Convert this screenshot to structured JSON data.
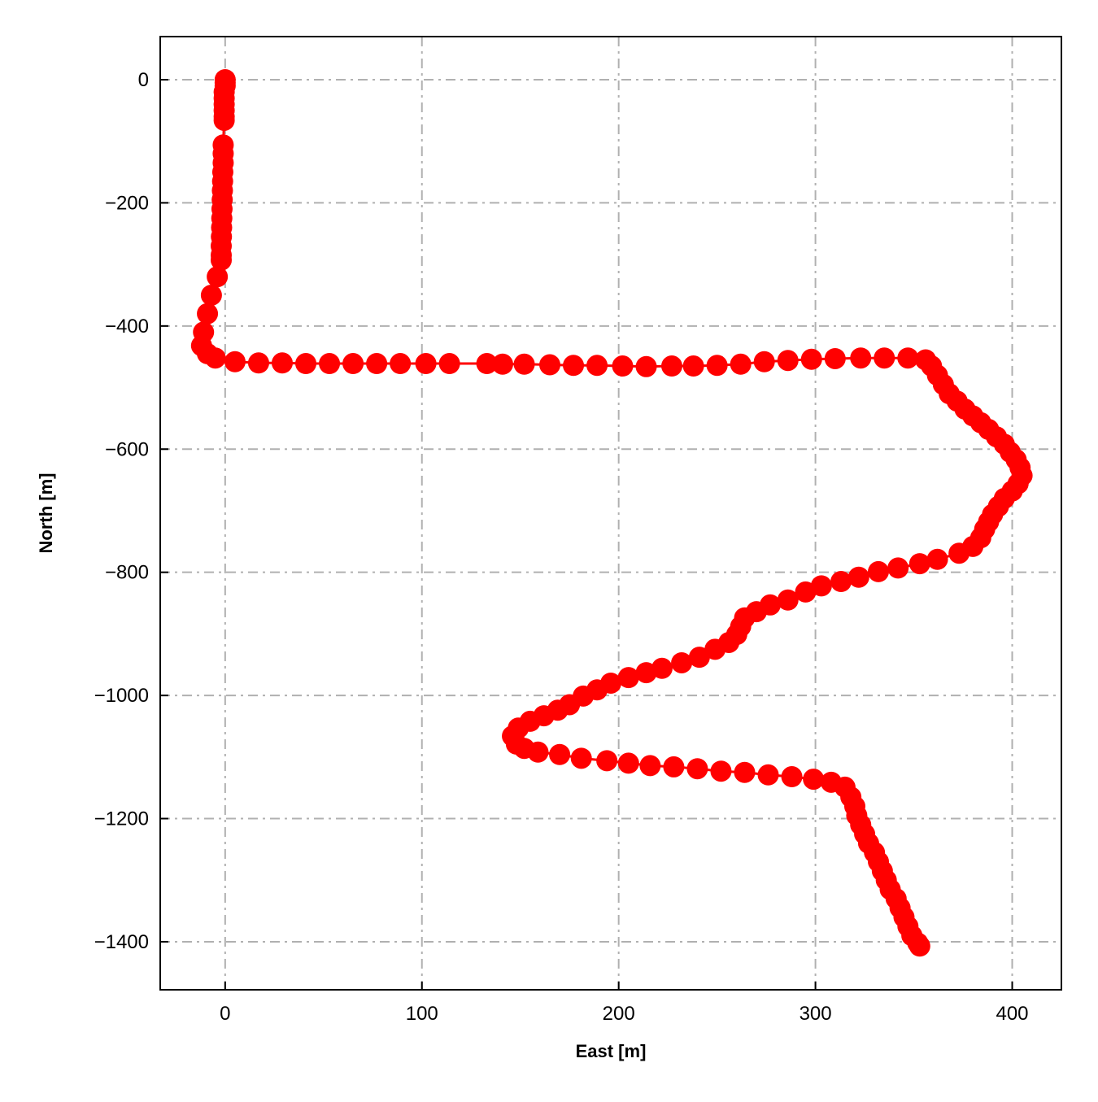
{
  "chart_data": {
    "type": "line",
    "title": "",
    "xlabel": "East [m]",
    "ylabel": "North [m]",
    "xlim": [
      -33,
      425
    ],
    "ylim": [
      -1478,
      70
    ],
    "xticks": [
      0,
      100,
      200,
      300,
      400
    ],
    "yticks": [
      0,
      -200,
      -400,
      -600,
      -800,
      -1000,
      -1200,
      -1400
    ],
    "xtick_labels": [
      "0",
      "100",
      "200",
      "300",
      "400"
    ],
    "ytick_labels": [
      "0",
      "−200",
      "−400",
      "−600",
      "−800",
      "−1000",
      "−1200",
      "−1400"
    ],
    "grid": true,
    "grid_style": "dash-dot",
    "color": "#ff0000",
    "marker": "circle",
    "series": [
      {
        "points": [
          [
            0,
            0
          ],
          [
            0,
            -5
          ],
          [
            0,
            -10
          ],
          [
            -0.5,
            -20
          ],
          [
            -0.5,
            -30
          ],
          [
            -0.5,
            -40
          ],
          [
            -0.5,
            -50
          ],
          [
            -0.5,
            -60
          ],
          [
            -0.5,
            -66
          ],
          [
            -1,
            -106
          ],
          [
            -1,
            -120
          ],
          [
            -1,
            -135
          ],
          [
            -1.2,
            -150
          ],
          [
            -1.3,
            -165
          ],
          [
            -1.4,
            -180
          ],
          [
            -1.5,
            -195
          ],
          [
            -1.6,
            -210
          ],
          [
            -1.7,
            -225
          ],
          [
            -1.8,
            -240
          ],
          [
            -1.9,
            -255
          ],
          [
            -2,
            -270
          ],
          [
            -2,
            -285
          ],
          [
            -2,
            -293
          ],
          [
            -4,
            -320
          ],
          [
            -7,
            -350
          ],
          [
            -9,
            -380
          ],
          [
            -11,
            -410
          ],
          [
            -12,
            -432
          ],
          [
            -9,
            -445
          ],
          [
            -5,
            -452
          ],
          [
            5,
            -458
          ],
          [
            17,
            -460
          ],
          [
            29,
            -460
          ],
          [
            41,
            -461
          ],
          [
            53,
            -461
          ],
          [
            65,
            -461
          ],
          [
            77,
            -461
          ],
          [
            89,
            -461
          ],
          [
            102,
            -461
          ],
          [
            114,
            -461
          ],
          [
            133,
            -461
          ],
          [
            141,
            -462
          ],
          [
            152,
            -462
          ],
          [
            165,
            -463
          ],
          [
            177,
            -464
          ],
          [
            189,
            -464
          ],
          [
            202,
            -465
          ],
          [
            214,
            -466
          ],
          [
            227,
            -465
          ],
          [
            238,
            -465
          ],
          [
            250,
            -464
          ],
          [
            262,
            -462
          ],
          [
            274,
            -458
          ],
          [
            286,
            -456
          ],
          [
            298,
            -454
          ],
          [
            310,
            -453
          ],
          [
            323,
            -452
          ],
          [
            335,
            -452
          ],
          [
            347,
            -452
          ],
          [
            356,
            -455
          ],
          [
            359,
            -465
          ],
          [
            362,
            -480
          ],
          [
            365,
            -495
          ],
          [
            368,
            -510
          ],
          [
            372,
            -522
          ],
          [
            376,
            -535
          ],
          [
            380,
            -546
          ],
          [
            384,
            -557
          ],
          [
            388,
            -568
          ],
          [
            392,
            -580
          ],
          [
            396,
            -592
          ],
          [
            399,
            -605
          ],
          [
            402,
            -617
          ],
          [
            404,
            -630
          ],
          [
            405,
            -643
          ],
          [
            403,
            -656
          ],
          [
            400,
            -668
          ],
          [
            396,
            -680
          ],
          [
            393,
            -693
          ],
          [
            390,
            -706
          ],
          [
            388,
            -718
          ],
          [
            386,
            -730
          ],
          [
            384,
            -744
          ],
          [
            380,
            -758
          ],
          [
            373,
            -769
          ],
          [
            362,
            -779
          ],
          [
            353,
            -786
          ],
          [
            342,
            -793
          ],
          [
            332,
            -799
          ],
          [
            322,
            -808
          ],
          [
            313,
            -815
          ],
          [
            303,
            -822
          ],
          [
            295,
            -832
          ],
          [
            286,
            -845
          ],
          [
            277,
            -853
          ],
          [
            270,
            -864
          ],
          [
            264,
            -874
          ],
          [
            262,
            -888
          ],
          [
            260,
            -901
          ],
          [
            256,
            -914
          ],
          [
            249,
            -925
          ],
          [
            241,
            -938
          ],
          [
            232,
            -947
          ],
          [
            222,
            -956
          ],
          [
            214,
            -963
          ],
          [
            205,
            -971
          ],
          [
            196,
            -980
          ],
          [
            189,
            -991
          ],
          [
            182,
            -1001
          ],
          [
            175,
            -1015
          ],
          [
            169,
            -1024
          ],
          [
            162,
            -1033
          ],
          [
            155,
            -1042
          ],
          [
            149,
            -1053
          ],
          [
            146,
            -1066
          ],
          [
            148,
            -1079
          ],
          [
            152,
            -1086
          ],
          [
            159,
            -1092
          ],
          [
            170,
            -1096
          ],
          [
            181,
            -1102
          ],
          [
            194,
            -1106
          ],
          [
            205,
            -1110
          ],
          [
            216,
            -1114
          ],
          [
            228,
            -1116
          ],
          [
            240,
            -1119
          ],
          [
            252,
            -1123
          ],
          [
            264,
            -1125
          ],
          [
            276,
            -1129
          ],
          [
            288,
            -1132
          ],
          [
            299,
            -1136
          ],
          [
            308,
            -1141
          ],
          [
            315,
            -1149
          ],
          [
            318,
            -1165
          ],
          [
            320,
            -1180
          ],
          [
            321,
            -1195
          ],
          [
            323,
            -1210
          ],
          [
            325,
            -1225
          ],
          [
            327,
            -1240
          ],
          [
            330,
            -1255
          ],
          [
            332,
            -1270
          ],
          [
            334,
            -1285
          ],
          [
            336,
            -1300
          ],
          [
            338,
            -1315
          ],
          [
            341,
            -1330
          ],
          [
            343,
            -1345
          ],
          [
            345,
            -1360
          ],
          [
            347,
            -1375
          ],
          [
            349,
            -1390
          ],
          [
            352,
            -1402
          ],
          [
            353,
            -1407
          ]
        ]
      }
    ]
  }
}
